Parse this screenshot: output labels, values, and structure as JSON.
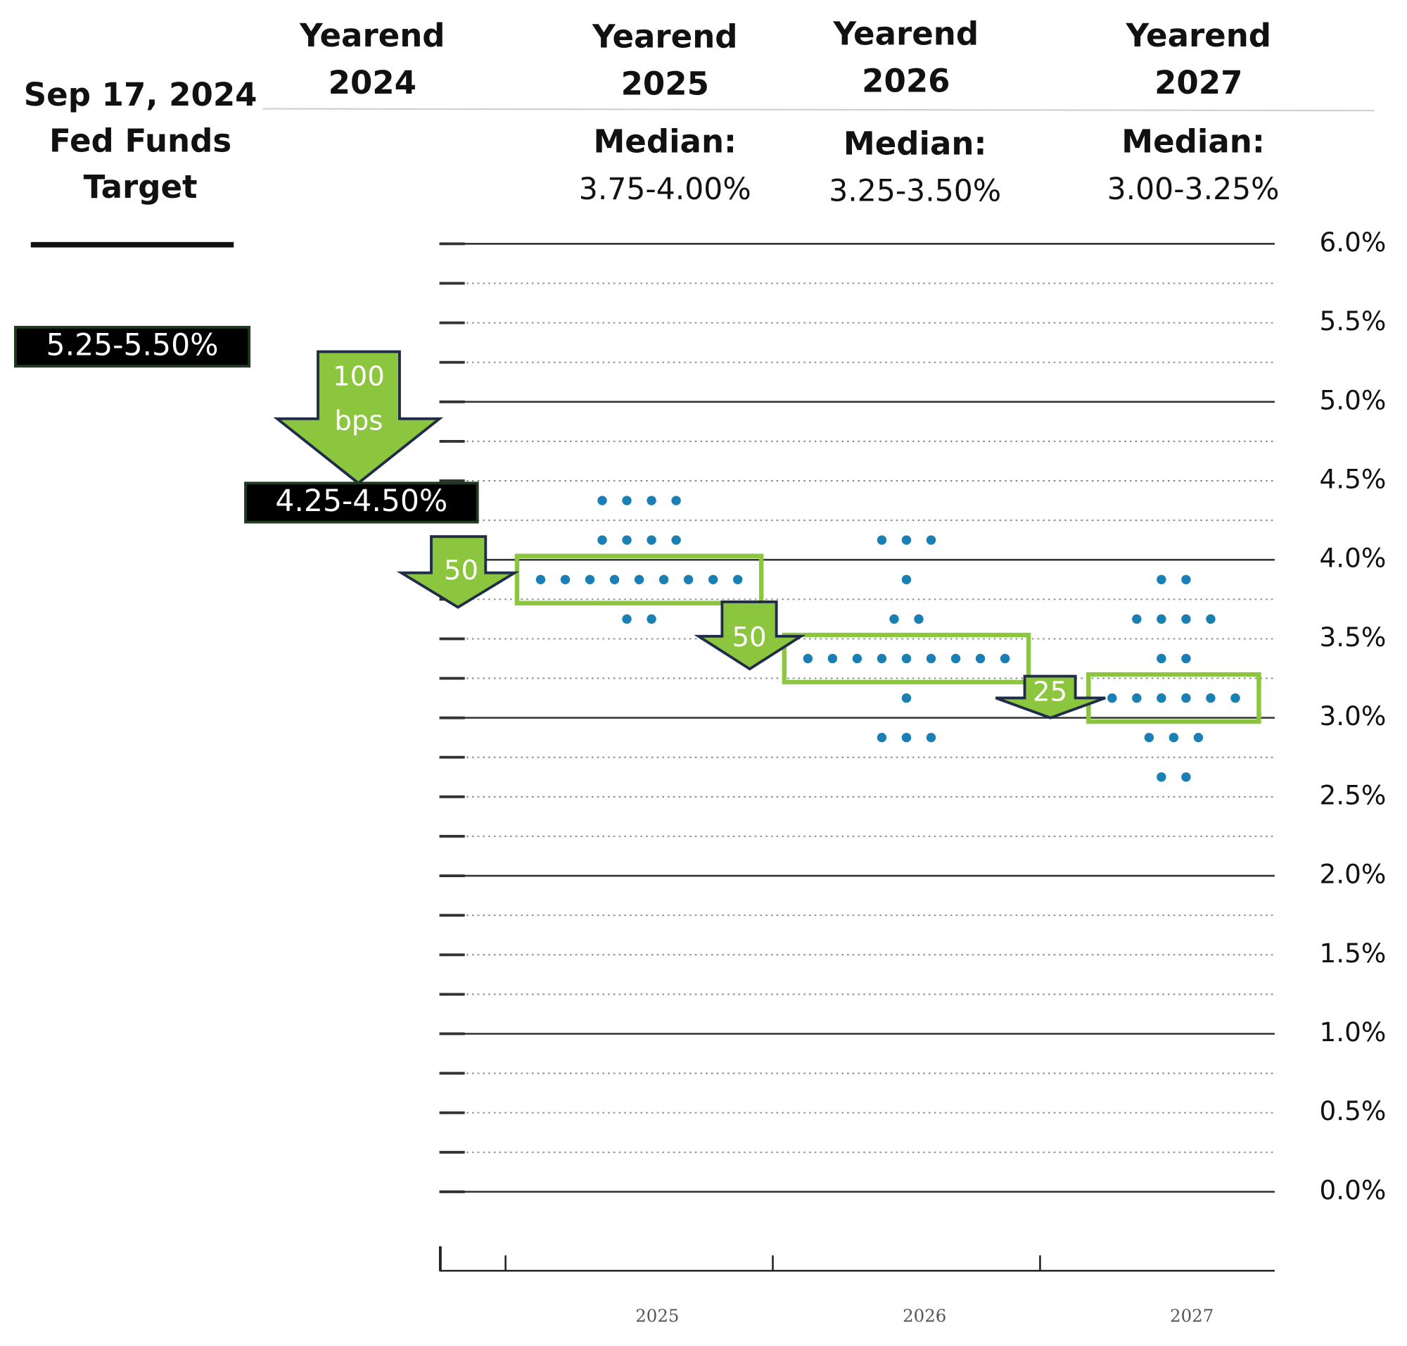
{
  "chart_data": {
    "type": "dot",
    "title_lines": [
      "Sep 17, 2024",
      "Fed Funds",
      "Target"
    ],
    "current_target": "5.25-5.50%",
    "yearend_2024_target": "4.25-4.50%",
    "headers": [
      [
        "Yearend",
        "2024"
      ],
      [
        "Yearend",
        "2025"
      ],
      [
        "Yearend",
        "2026"
      ],
      [
        "Yearend",
        "2027"
      ]
    ],
    "medians": [
      {
        "label": "Median:",
        "range": "3.75-4.00%"
      },
      {
        "label": "Median:",
        "range": "3.25-3.50%"
      },
      {
        "label": "Median:",
        "range": "3.00-3.25%"
      }
    ],
    "cuts": [
      [
        "100",
        "bps"
      ],
      [
        "50"
      ],
      [
        "50"
      ],
      [
        "25"
      ]
    ],
    "categories": [
      "2025",
      "2026",
      "2027"
    ],
    "color": "#1a7fb5",
    "columns": [
      [
        4.375,
        4.375,
        4.375,
        4.375,
        4.125,
        4.125,
        4.125,
        4.125,
        3.875,
        3.875,
        3.875,
        3.875,
        3.875,
        3.875,
        3.875,
        3.875,
        3.875,
        3.625,
        3.625
      ],
      [
        4.125,
        4.125,
        4.125,
        3.875,
        3.625,
        3.625,
        3.375,
        3.375,
        3.375,
        3.375,
        3.375,
        3.375,
        3.375,
        3.375,
        3.375,
        3.125,
        2.875,
        2.875,
        2.875
      ],
      [
        3.875,
        3.875,
        3.625,
        3.625,
        3.625,
        3.625,
        3.375,
        3.375,
        3.125,
        3.125,
        3.125,
        3.125,
        3.125,
        3.125,
        2.875,
        2.875,
        2.875,
        2.625,
        2.625
      ]
    ],
    "ylim": [
      -0.5,
      6
    ],
    "yticks": [
      {
        "value": 0,
        "label": "0.0%"
      },
      {
        "value": 0.5,
        "label": "0.5%"
      },
      {
        "value": 1,
        "label": "1.0%"
      },
      {
        "value": 1.5,
        "label": "1.5%"
      },
      {
        "value": 2,
        "label": "2.0%"
      },
      {
        "value": 2.5,
        "label": "2.5%"
      },
      {
        "value": 3,
        "label": "3.0%"
      },
      {
        "value": 3.5,
        "label": "3.5%"
      },
      {
        "value": 4,
        "label": "4.0%"
      },
      {
        "value": 4.5,
        "label": "4.5%"
      },
      {
        "value": 5,
        "label": "5.0%"
      },
      {
        "value": 5.5,
        "label": "5.5%"
      },
      {
        "value": 6,
        "label": "6.0%"
      }
    ],
    "grid": true
  }
}
